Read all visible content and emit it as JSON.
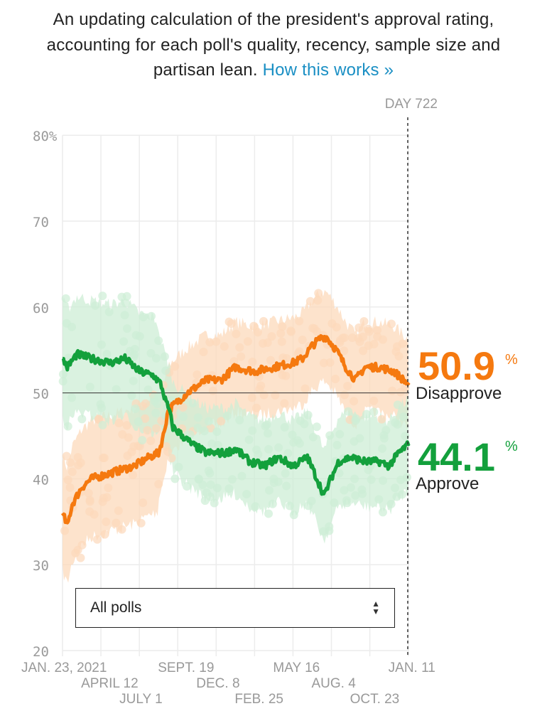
{
  "intro": {
    "text": "An updating calculation of the president's approval rating, accounting for each poll's quality, recency, sample size and partisan lean.",
    "link": "How this works »"
  },
  "filter": {
    "selected": "All polls"
  },
  "colors": {
    "approve": "#13a03c",
    "disapprove": "#f5790f",
    "approve_light": "#cdeed6",
    "disapprove_light": "#fcd9bb"
  },
  "chart_data": {
    "type": "line",
    "day_marker": "DAY 722",
    "y_ticks": [
      "80%",
      "70",
      "60",
      "50",
      "40",
      "30",
      "20"
    ],
    "y_tick_values": [
      80,
      70,
      60,
      50,
      40,
      30,
      20
    ],
    "ylim": [
      20,
      80
    ],
    "xlim_days": [
      0,
      722
    ],
    "x_ticks": [
      "JAN. 23, 2021",
      "APRIL 12",
      "JULY 1",
      "SEPT. 19",
      "DEC. 8",
      "FEB. 25",
      "MAY 16",
      "AUG. 4",
      "OCT. 23",
      "JAN. 11"
    ],
    "x_tick_days": [
      0,
      80,
      160,
      240,
      320,
      400,
      480,
      560,
      640,
      720
    ],
    "reference_line": 50,
    "series": [
      {
        "name": "Disapprove",
        "final": "50.9",
        "pct": "%",
        "points": [
          [
            0,
            36
          ],
          [
            10,
            34.5
          ],
          [
            20,
            37
          ],
          [
            40,
            39
          ],
          [
            60,
            40
          ],
          [
            90,
            40.5
          ],
          [
            120,
            41
          ],
          [
            150,
            41.5
          ],
          [
            180,
            42.5
          ],
          [
            200,
            43
          ],
          [
            210,
            45
          ],
          [
            220,
            48
          ],
          [
            240,
            49
          ],
          [
            260,
            50
          ],
          [
            300,
            51.5
          ],
          [
            330,
            51.5
          ],
          [
            360,
            53
          ],
          [
            400,
            52.5
          ],
          [
            440,
            53
          ],
          [
            480,
            53.5
          ],
          [
            500,
            54
          ],
          [
            520,
            55.5
          ],
          [
            540,
            56.5
          ],
          [
            550,
            56.5
          ],
          [
            570,
            55
          ],
          [
            590,
            53
          ],
          [
            610,
            51.5
          ],
          [
            630,
            53
          ],
          [
            660,
            53
          ],
          [
            690,
            52.5
          ],
          [
            710,
            51.5
          ],
          [
            722,
            50.9
          ]
        ]
      },
      {
        "name": "Approve",
        "final": "44.1",
        "pct": "%",
        "points": [
          [
            0,
            54
          ],
          [
            10,
            53
          ],
          [
            30,
            54.5
          ],
          [
            60,
            54
          ],
          [
            100,
            53.5
          ],
          [
            130,
            54
          ],
          [
            160,
            52.5
          ],
          [
            190,
            52
          ],
          [
            205,
            51
          ],
          [
            215,
            49
          ],
          [
            222,
            48
          ],
          [
            230,
            46
          ],
          [
            250,
            45
          ],
          [
            270,
            44
          ],
          [
            300,
            43
          ],
          [
            340,
            43
          ],
          [
            360,
            43.5
          ],
          [
            390,
            42
          ],
          [
            420,
            41.5
          ],
          [
            450,
            42.5
          ],
          [
            480,
            41.5
          ],
          [
            510,
            42.5
          ],
          [
            530,
            40
          ],
          [
            545,
            38
          ],
          [
            555,
            39.5
          ],
          [
            575,
            42
          ],
          [
            600,
            42.5
          ],
          [
            630,
            42
          ],
          [
            660,
            42
          ],
          [
            680,
            41.5
          ],
          [
            700,
            43
          ],
          [
            722,
            44.1
          ]
        ]
      }
    ]
  }
}
